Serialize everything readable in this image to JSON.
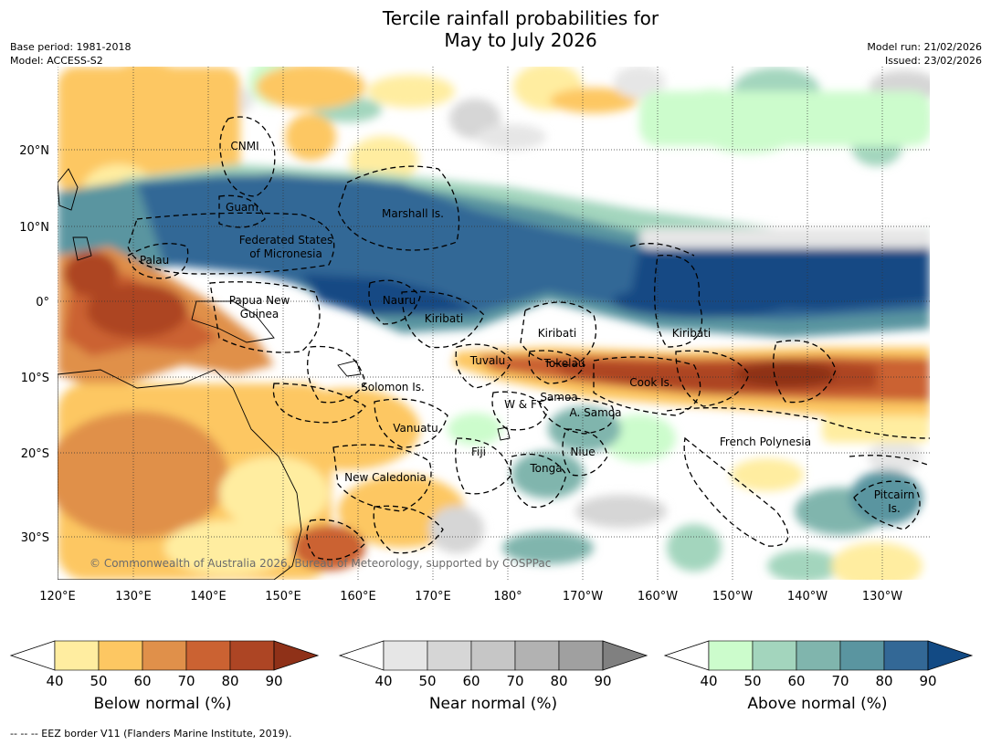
{
  "title_line1": "Tercile rainfall probabilities for",
  "title_line2": "May to July 2026",
  "meta_left": [
    "Base period: 1981-2018",
    "Model: ACCESS-S2"
  ],
  "meta_right": [
    "Model run: 21/02/2026",
    "Issued: 23/02/2026"
  ],
  "credit": "© Commonwealth of Australia 2026, Bureau of Meteorology, supported by COSPPac",
  "footnote": "--  --  -- EEZ border V11 (Flanders Marine Institute, 2019).",
  "lon_ticks": [
    "120°E",
    "130°E",
    "140°E",
    "150°E",
    "160°E",
    "170°E",
    "180°",
    "170°W",
    "160°W",
    "150°W",
    "140°W",
    "130°W"
  ],
  "lat_ticks": [
    "20°N",
    "10°N",
    "0°",
    "10°S",
    "20°S",
    "30°S"
  ],
  "places": [
    {
      "name": "CNMI"
    },
    {
      "name": "Guam"
    },
    {
      "name": "Marshall Is."
    },
    {
      "name": "Federated States"
    },
    {
      "name": "of Micronesia"
    },
    {
      "name": "Palau"
    },
    {
      "name": "Papua New"
    },
    {
      "name": "Guinea"
    },
    {
      "name": "Nauru"
    },
    {
      "name": "Kiribati"
    },
    {
      "name": "Kiribati"
    },
    {
      "name": "Kiribati"
    },
    {
      "name": "Tuvalu"
    },
    {
      "name": "Tokelau"
    },
    {
      "name": "Cook Is."
    },
    {
      "name": "Solomon Is."
    },
    {
      "name": "W & F"
    },
    {
      "name": "Samoa"
    },
    {
      "name": "A. Samoa"
    },
    {
      "name": "Vanuatu"
    },
    {
      "name": "Fiji"
    },
    {
      "name": "Niue"
    },
    {
      "name": "French Polynesia"
    },
    {
      "name": "Tonga"
    },
    {
      "name": "New Caledonia"
    },
    {
      "name": "Pitcairn"
    },
    {
      "name": "Is."
    }
  ],
  "colorbars": [
    {
      "label": "Below normal (%)",
      "ticks": [
        "40",
        "50",
        "60",
        "70",
        "80",
        "90"
      ],
      "colors": [
        "#ffeda0",
        "#fdc762",
        "#e0904a",
        "#cb6232",
        "#ad4524",
        "#8f3118"
      ]
    },
    {
      "label": "Near normal (%)",
      "ticks": [
        "40",
        "50",
        "60",
        "70",
        "80",
        "90"
      ],
      "colors": [
        "#e6e6e6",
        "#d6d6d6",
        "#c6c6c6",
        "#b2b2b2",
        "#a0a0a0",
        "#808080"
      ]
    },
    {
      "label": "Above normal (%)",
      "ticks": [
        "40",
        "50",
        "60",
        "70",
        "80",
        "90"
      ],
      "colors": [
        "#ccfccc",
        "#a3d5bd",
        "#80b5ad",
        "#5a95a0",
        "#336896",
        "#124a84"
      ]
    }
  ]
}
